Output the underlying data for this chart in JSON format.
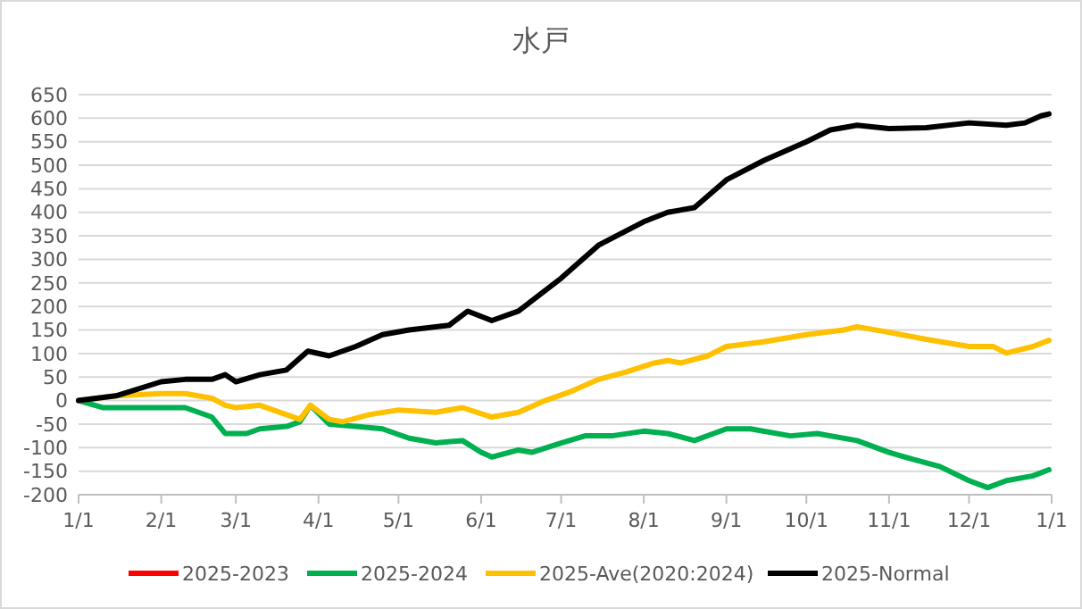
{
  "chart_data": {
    "type": "line",
    "title": "水戸",
    "grid": "y",
    "legend": "bottom",
    "line_style": "solid",
    "marker": "none",
    "xlim": [
      "2025-01-01",
      "2026-01-01"
    ],
    "xticks": [
      {
        "value": "2025-01-01",
        "label": "1/1"
      },
      {
        "value": "2025-02-01",
        "label": "2/1"
      },
      {
        "value": "2025-03-01",
        "label": "3/1"
      },
      {
        "value": "2025-04-01",
        "label": "4/1"
      },
      {
        "value": "2025-05-01",
        "label": "5/1"
      },
      {
        "value": "2025-06-01",
        "label": "6/1"
      },
      {
        "value": "2025-07-01",
        "label": "7/1"
      },
      {
        "value": "2025-08-01",
        "label": "8/1"
      },
      {
        "value": "2025-09-01",
        "label": "9/1"
      },
      {
        "value": "2025-10-01",
        "label": "10/1"
      },
      {
        "value": "2025-11-01",
        "label": "11/1"
      },
      {
        "value": "2025-12-01",
        "label": "12/1"
      },
      {
        "value": "2026-01-01",
        "label": "1/1"
      }
    ],
    "ylim": [
      -200,
      650
    ],
    "yticks": [
      -200,
      -150,
      -100,
      -50,
      0,
      50,
      100,
      150,
      200,
      250,
      300,
      350,
      400,
      450,
      500,
      550,
      600,
      650
    ],
    "series": [
      {
        "name": "2025-2023",
        "color": "#ff0000"
      },
      {
        "name": "2025-2024",
        "color": "#00b050",
        "x": [
          "2025-01-01",
          "2025-01-10",
          "2025-02-01",
          "2025-02-10",
          "2025-02-20",
          "2025-02-25",
          "2025-03-05",
          "2025-03-10",
          "2025-03-20",
          "2025-03-25",
          "2025-03-29",
          "2025-04-05",
          "2025-04-15",
          "2025-04-25",
          "2025-05-05",
          "2025-05-15",
          "2025-05-25",
          "2025-06-01",
          "2025-06-05",
          "2025-06-15",
          "2025-06-20",
          "2025-07-01",
          "2025-07-10",
          "2025-07-20",
          "2025-08-01",
          "2025-08-10",
          "2025-08-20",
          "2025-09-01",
          "2025-09-10",
          "2025-09-25",
          "2025-10-05",
          "2025-10-20",
          "2025-11-01",
          "2025-11-10",
          "2025-11-20",
          "2025-12-01",
          "2025-12-08",
          "2025-12-15",
          "2025-12-25",
          "2025-12-31"
        ],
        "values": [
          0,
          -15,
          -15,
          -15,
          -35,
          -70,
          -70,
          -60,
          -55,
          -45,
          -10,
          -50,
          -55,
          -60,
          -80,
          -90,
          -85,
          -110,
          -120,
          -105,
          -110,
          -90,
          -75,
          -75,
          -65,
          -70,
          -85,
          -60,
          -60,
          -75,
          -70,
          -85,
          -110,
          -125,
          -140,
          -170,
          -185,
          -170,
          -160,
          -147
        ]
      },
      {
        "name": "2025-Ave(2020:2024)",
        "color": "#ffc000",
        "x": [
          "2025-01-01",
          "2025-01-15",
          "2025-02-01",
          "2025-02-10",
          "2025-02-20",
          "2025-02-25",
          "2025-03-01",
          "2025-03-10",
          "2025-03-20",
          "2025-03-25",
          "2025-03-29",
          "2025-04-05",
          "2025-04-10",
          "2025-04-20",
          "2025-05-01",
          "2025-05-15",
          "2025-05-25",
          "2025-06-05",
          "2025-06-15",
          "2025-06-25",
          "2025-07-05",
          "2025-07-15",
          "2025-07-25",
          "2025-08-05",
          "2025-08-10",
          "2025-08-15",
          "2025-08-25",
          "2025-09-01",
          "2025-09-15",
          "2025-10-01",
          "2025-10-15",
          "2025-10-20",
          "2025-11-01",
          "2025-11-15",
          "2025-12-01",
          "2025-12-10",
          "2025-12-15",
          "2025-12-25",
          "2025-12-31"
        ],
        "values": [
          0,
          10,
          15,
          15,
          5,
          -10,
          -15,
          -10,
          -30,
          -40,
          -10,
          -40,
          -45,
          -30,
          -20,
          -25,
          -15,
          -35,
          -25,
          0,
          20,
          45,
          60,
          80,
          85,
          80,
          95,
          115,
          125,
          140,
          150,
          157,
          145,
          130,
          115,
          115,
          101,
          115,
          128
        ]
      },
      {
        "name": "2025-Normal",
        "color": "#000000",
        "x": [
          "2025-01-01",
          "2025-01-15",
          "2025-02-01",
          "2025-02-10",
          "2025-02-20",
          "2025-02-25",
          "2025-03-01",
          "2025-03-10",
          "2025-03-20",
          "2025-03-28",
          "2025-04-05",
          "2025-04-15",
          "2025-04-25",
          "2025-05-05",
          "2025-05-20",
          "2025-05-27",
          "2025-06-05",
          "2025-06-15",
          "2025-07-01",
          "2025-07-15",
          "2025-08-01",
          "2025-08-10",
          "2025-08-20",
          "2025-09-01",
          "2025-09-15",
          "2025-10-01",
          "2025-10-10",
          "2025-10-20",
          "2025-11-01",
          "2025-11-15",
          "2025-12-01",
          "2025-12-15",
          "2025-12-22",
          "2025-12-28",
          "2025-12-31"
        ],
        "values": [
          0,
          10,
          40,
          45,
          45,
          55,
          40,
          55,
          65,
          105,
          95,
          115,
          140,
          150,
          160,
          190,
          170,
          190,
          260,
          330,
          380,
          400,
          410,
          469,
          510,
          550,
          575,
          585,
          578,
          580,
          590,
          585,
          590,
          605,
          609
        ]
      }
    ]
  }
}
